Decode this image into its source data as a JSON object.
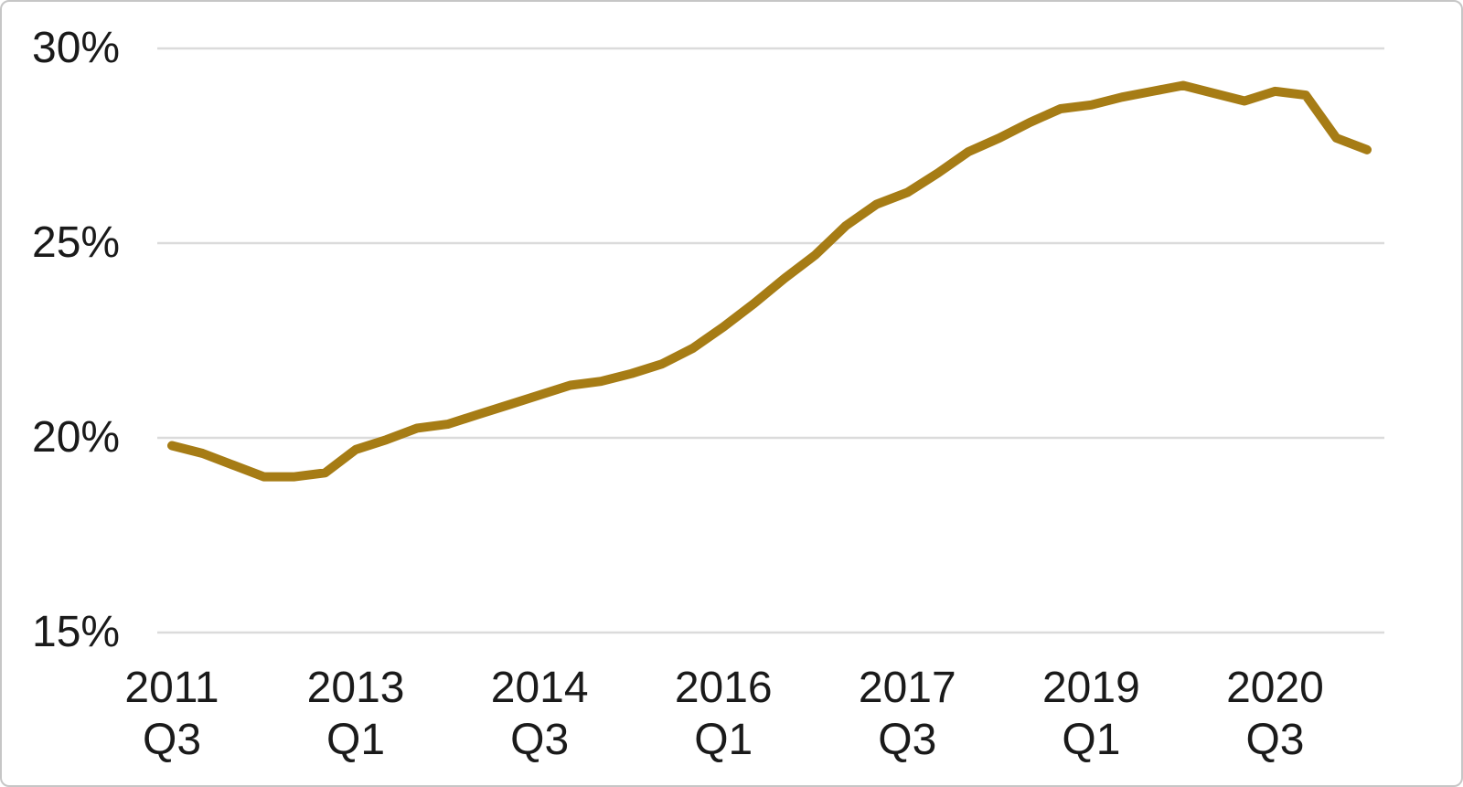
{
  "chart_data": {
    "type": "line",
    "grid": true,
    "legend": false,
    "line_color": "#A67C15",
    "gridline_color": "#DBDBDB",
    "border_color": "#C6C6C6",
    "background_color": "#FFFFFF",
    "text_color": "#1A1A1A",
    "x": [
      "2011 Q3",
      "2011 Q4",
      "2012 Q1",
      "2012 Q2",
      "2012 Q3",
      "2012 Q4",
      "2013 Q1",
      "2013 Q2",
      "2013 Q3",
      "2013 Q4",
      "2014 Q1",
      "2014 Q2",
      "2014 Q3",
      "2014 Q4",
      "2015 Q1",
      "2015 Q2",
      "2015 Q3",
      "2015 Q4",
      "2016 Q1",
      "2016 Q2",
      "2016 Q3",
      "2016 Q4",
      "2017 Q1",
      "2017 Q2",
      "2017 Q3",
      "2017 Q4",
      "2018 Q1",
      "2018 Q2",
      "2018 Q3",
      "2018 Q4",
      "2019 Q1",
      "2019 Q2",
      "2019 Q3",
      "2019 Q4",
      "2020 Q1",
      "2020 Q2",
      "2020 Q3",
      "2020 Q4",
      "2021 Q1",
      "2021 Q2"
    ],
    "values": [
      19.8,
      19.6,
      19.3,
      19.0,
      19.0,
      19.1,
      19.7,
      19.95,
      20.25,
      20.35,
      20.6,
      20.85,
      21.1,
      21.35,
      21.45,
      21.65,
      21.9,
      22.3,
      22.85,
      23.45,
      24.1,
      24.7,
      25.45,
      26.0,
      26.3,
      26.8,
      27.35,
      27.7,
      28.1,
      28.45,
      28.55,
      28.75,
      28.9,
      29.05,
      28.85,
      28.65,
      28.9,
      28.8,
      27.7,
      27.4
    ],
    "y_axis": {
      "unit": "%",
      "ylim": [
        15,
        30
      ],
      "ticks": [
        {
          "value": 30,
          "label": "30%"
        },
        {
          "value": 25,
          "label": "25%"
        },
        {
          "value": 20,
          "label": "20%"
        },
        {
          "value": 15,
          "label": "15%"
        }
      ]
    },
    "x_axis": {
      "ticks": [
        {
          "index": 0,
          "year": "2011",
          "quarter": "Q3"
        },
        {
          "index": 6,
          "year": "2013",
          "quarter": "Q1"
        },
        {
          "index": 12,
          "year": "2014",
          "quarter": "Q3"
        },
        {
          "index": 18,
          "year": "2016",
          "quarter": "Q1"
        },
        {
          "index": 24,
          "year": "2017",
          "quarter": "Q3"
        },
        {
          "index": 30,
          "year": "2019",
          "quarter": "Q1"
        },
        {
          "index": 36,
          "year": "2020",
          "quarter": "Q3"
        }
      ]
    }
  }
}
